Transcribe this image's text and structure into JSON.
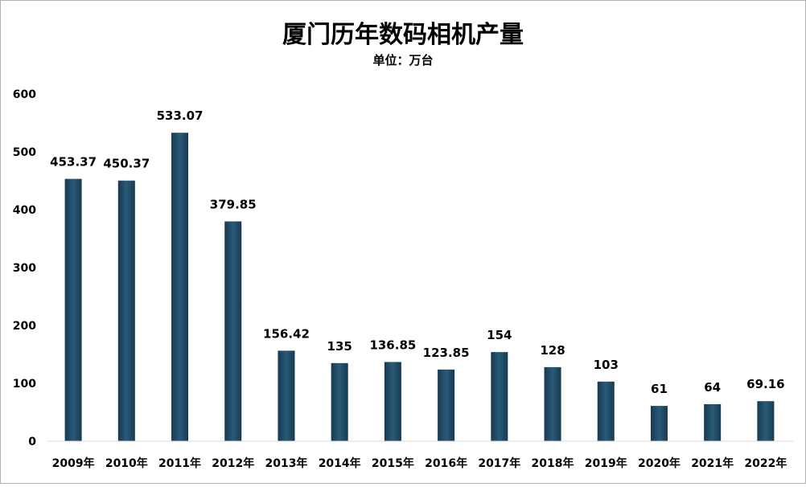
{
  "chart_data": {
    "type": "bar",
    "title": "厦门历年数码相机产量",
    "subtitle": "单位：万台",
    "xlabel": "",
    "ylabel": "",
    "ylim": [
      0,
      600
    ],
    "yticks": [
      0,
      100,
      200,
      300,
      400,
      500,
      600
    ],
    "grid": false,
    "legend": "none",
    "categories": [
      "2009年",
      "2010年",
      "2011年",
      "2012年",
      "2013年",
      "2014年",
      "2015年",
      "2016年",
      "2017年",
      "2018年",
      "2019年",
      "2020年",
      "2021年",
      "2022年"
    ],
    "values": [
      453.37,
      450.37,
      533.07,
      379.85,
      156.42,
      135,
      136.85,
      123.85,
      154,
      128,
      103,
      61,
      64,
      69.16
    ],
    "value_labels": [
      "453.37",
      "450.37",
      "533.07",
      "379.85",
      "156.42",
      "135",
      "136.85",
      "123.85",
      "154",
      "128",
      "103",
      "61",
      "64",
      "69.16"
    ],
    "colors": {
      "bar_top": "#2a5a78",
      "bar_bottom": "#163a52",
      "axis": "#d9d9d9"
    }
  }
}
